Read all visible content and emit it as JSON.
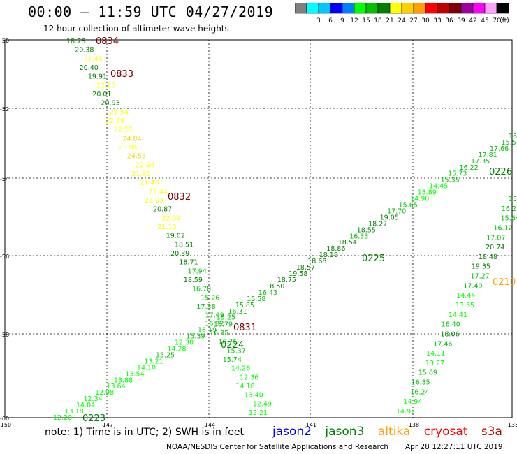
{
  "header": {
    "title": "00:00 – 11:59 UTC 04/27/2019",
    "subtitle": "12 hour collection of altimeter wave heights"
  },
  "legend": {
    "unit": "(ft)",
    "swatches": [
      {
        "color": "#808080",
        "label": ""
      },
      {
        "color": "#00ffff",
        "label": "3"
      },
      {
        "color": "#00c8ff",
        "label": "6"
      },
      {
        "color": "#0000ff",
        "label": "9"
      },
      {
        "color": "#0080ff",
        "label": "12"
      },
      {
        "color": "#00ff00",
        "label": "15"
      },
      {
        "color": "#00c000",
        "label": "18"
      },
      {
        "color": "#008000",
        "label": "21"
      },
      {
        "color": "#ffff00",
        "label": "24"
      },
      {
        "color": "#ffd000",
        "label": "27"
      },
      {
        "color": "#ffa000",
        "label": "30"
      },
      {
        "color": "#ff0000",
        "label": "33"
      },
      {
        "color": "#c00000",
        "label": "36"
      },
      {
        "color": "#800000",
        "label": "39"
      },
      {
        "color": "#a000a0",
        "label": "42"
      },
      {
        "color": "#ff00ff",
        "label": "45"
      },
      {
        "color": "#ffa0ff",
        "label": "70"
      },
      {
        "color": "#000000",
        "label": ""
      }
    ]
  },
  "axes": {
    "lat_labels": [
      "-50",
      "-52",
      "-54",
      "-56",
      "-58",
      "-60"
    ],
    "lon_labels": [
      "-150",
      "-147",
      "-144",
      "-141",
      "-138",
      "-135"
    ]
  },
  "tracks": [
    {
      "id": "cryosat-0834-0832",
      "points": [
        {
          "t": "18.76",
          "c": "#008000"
        },
        {
          "t": "20.38",
          "c": "#008000"
        },
        {
          "t": "21.48",
          "c": "#ffff00"
        },
        {
          "t": "20.40",
          "c": "#008000"
        },
        {
          "t": "19.91",
          "c": "#008000"
        },
        {
          "t": "22.18",
          "c": "#ffff00"
        },
        {
          "t": "20.01",
          "c": "#008000"
        },
        {
          "t": "20.93",
          "c": "#008000"
        },
        {
          "t": "21.54",
          "c": "#ffff00"
        },
        {
          "t": "22.89",
          "c": "#ffff00"
        },
        {
          "t": "22.55",
          "c": "#ffff00"
        },
        {
          "t": "24.84",
          "c": "#ffd000"
        },
        {
          "t": "23.84",
          "c": "#ffff00"
        },
        {
          "t": "24.53",
          "c": "#ffd000"
        },
        {
          "t": "22.94",
          "c": "#ffff00"
        },
        {
          "t": "21.80",
          "c": "#ffff00"
        },
        {
          "t": "21.48",
          "c": "#ffff00"
        },
        {
          "t": "22.44",
          "c": "#ffff00"
        },
        {
          "t": "21.93",
          "c": "#ffff00"
        },
        {
          "t": "20.87",
          "c": "#008000"
        },
        {
          "t": "22.09",
          "c": "#ffff00"
        },
        {
          "t": "21.10",
          "c": "#ffff00"
        },
        {
          "t": "19.02",
          "c": "#008000"
        },
        {
          "t": "18.51",
          "c": "#008000"
        },
        {
          "t": "20.39",
          "c": "#008000"
        },
        {
          "t": "18.71",
          "c": "#008000"
        },
        {
          "t": "17.94",
          "c": "#00c000"
        },
        {
          "t": "18.59",
          "c": "#008000"
        },
        {
          "t": "16.78",
          "c": "#00c000"
        },
        {
          "t": "15.26",
          "c": "#00c000"
        },
        {
          "t": "17.38",
          "c": "#00c000"
        },
        {
          "t": "17.09",
          "c": "#00c000"
        },
        {
          "t": "16.79",
          "c": "#00c000"
        },
        {
          "t": "16.35",
          "c": "#00c000"
        },
        {
          "t": "16.76",
          "c": "#00c000"
        },
        {
          "t": "15.37",
          "c": "#00c000"
        },
        {
          "t": "15.74",
          "c": "#00c000"
        },
        {
          "t": "14.26",
          "c": "#00ff00"
        },
        {
          "t": "12.36",
          "c": "#00ff00"
        },
        {
          "t": "14.18",
          "c": "#00ff00"
        },
        {
          "t": "13.40",
          "c": "#00ff00"
        },
        {
          "t": "12.49",
          "c": "#00ff00"
        },
        {
          "t": "12.21",
          "c": "#00ff00"
        }
      ]
    },
    {
      "id": "jason3-0223-0226",
      "points": [
        {
          "t": "12.20",
          "c": "#00ff00"
        },
        {
          "t": "13.18",
          "c": "#00ff00"
        },
        {
          "t": "14.04",
          "c": "#00ff00"
        },
        {
          "t": "12.34",
          "c": "#00ff00"
        },
        {
          "t": "12.98",
          "c": "#00ff00"
        },
        {
          "t": "13.64",
          "c": "#00ff00"
        },
        {
          "t": "13.88",
          "c": "#00ff00"
        },
        {
          "t": "13.54",
          "c": "#00ff00"
        },
        {
          "t": "14.10",
          "c": "#00ff00"
        },
        {
          "t": "13.21",
          "c": "#00ff00"
        },
        {
          "t": "15.25",
          "c": "#00c000"
        },
        {
          "t": "14.28",
          "c": "#00ff00"
        },
        {
          "t": "12.30",
          "c": "#00ff00"
        },
        {
          "t": "15.39",
          "c": "#00c000"
        },
        {
          "t": "16.19",
          "c": "#00c000"
        },
        {
          "t": "16.32",
          "c": "#00c000"
        },
        {
          "t": "15.25",
          "c": "#00c000"
        },
        {
          "t": "16.31",
          "c": "#00c000"
        },
        {
          "t": "15.85",
          "c": "#00c000"
        },
        {
          "t": "15.58",
          "c": "#00c000"
        },
        {
          "t": "16.43",
          "c": "#00c000"
        },
        {
          "t": "18.50",
          "c": "#008000"
        },
        {
          "t": "18.75",
          "c": "#008000"
        },
        {
          "t": "19.58",
          "c": "#008000"
        },
        {
          "t": "18.57",
          "c": "#008000"
        },
        {
          "t": "18.68",
          "c": "#008000"
        },
        {
          "t": "18.19",
          "c": "#008000"
        },
        {
          "t": "18.86",
          "c": "#008000"
        },
        {
          "t": "18.54",
          "c": "#008000"
        },
        {
          "t": "16.33",
          "c": "#00c000"
        },
        {
          "t": "18.55",
          "c": "#008000"
        },
        {
          "t": "18.27",
          "c": "#008000"
        },
        {
          "t": "19.05",
          "c": "#008000"
        },
        {
          "t": "17.70",
          "c": "#00c000"
        },
        {
          "t": "15.65",
          "c": "#00c000"
        },
        {
          "t": "14.90",
          "c": "#00ff00"
        },
        {
          "t": "13.89",
          "c": "#00ff00"
        },
        {
          "t": "14.45",
          "c": "#00ff00"
        },
        {
          "t": "15.35",
          "c": "#00c000"
        },
        {
          "t": "15.73",
          "c": "#00c000"
        },
        {
          "t": "16.22",
          "c": "#00c000"
        },
        {
          "t": "17.35",
          "c": "#00c000"
        },
        {
          "t": "17.81",
          "c": "#00c000"
        },
        {
          "t": "17.66",
          "c": "#00c000"
        },
        {
          "t": "15.5",
          "c": "#00c000"
        },
        {
          "t": "16",
          "c": "#00c000"
        }
      ]
    },
    {
      "id": "jason3-0210",
      "points": [
        {
          "t": "14.92",
          "c": "#00ff00"
        },
        {
          "t": "14.94",
          "c": "#00ff00"
        },
        {
          "t": "16.24",
          "c": "#00c000"
        },
        {
          "t": "16.35",
          "c": "#00c000"
        },
        {
          "t": "15.69",
          "c": "#00c000"
        },
        {
          "t": "13.27",
          "c": "#00ff00"
        },
        {
          "t": "14.11",
          "c": "#00ff00"
        },
        {
          "t": "17.46",
          "c": "#00c000"
        },
        {
          "t": "18.06",
          "c": "#008000"
        },
        {
          "t": "16.40",
          "c": "#00c000"
        },
        {
          "t": "14.41",
          "c": "#00ff00"
        },
        {
          "t": "13.65",
          "c": "#00ff00"
        },
        {
          "t": "14.44",
          "c": "#00ff00"
        },
        {
          "t": "17.49",
          "c": "#00c000"
        },
        {
          "t": "17.27",
          "c": "#00c000"
        },
        {
          "t": "19.35",
          "c": "#008000"
        },
        {
          "t": "18.48",
          "c": "#008000"
        },
        {
          "t": "20.74",
          "c": "#008000"
        },
        {
          "t": "17.07",
          "c": "#00c000"
        },
        {
          "t": "16.12",
          "c": "#00c000"
        },
        {
          "t": "15.64",
          "c": "#00c000"
        },
        {
          "t": "16.2",
          "c": "#00c000"
        },
        {
          "t": "15",
          "c": "#00c000"
        }
      ]
    }
  ],
  "pass_labels": [
    {
      "t": "0834",
      "c": "#800000"
    },
    {
      "t": "0833",
      "c": "#800000"
    },
    {
      "t": "0832",
      "c": "#800000"
    },
    {
      "t": "0831",
      "c": "#800000"
    },
    {
      "t": "0224",
      "c": "#008000"
    },
    {
      "t": "0223",
      "c": "#008000"
    },
    {
      "t": "0225",
      "c": "#008000"
    },
    {
      "t": "0226",
      "c": "#008000"
    },
    {
      "t": "0210",
      "c": "#ffa000"
    }
  ],
  "note": "note: 1) Time is in UTC; 2) SWH is in feet",
  "satellites": [
    {
      "name": "jason2",
      "color": "#0000ff"
    },
    {
      "name": "jason3",
      "color": "#008000"
    },
    {
      "name": "altika",
      "color": "#ffa000"
    },
    {
      "name": "cryosat",
      "color": "#ff0000"
    },
    {
      "name": "s3a",
      "color": "#c00000"
    }
  ],
  "footer": {
    "agency": "NOAA/NESDIS Center for Satellite Applications and Research",
    "timestamp": "Apr 28 12:27:11 UTC 2019"
  }
}
